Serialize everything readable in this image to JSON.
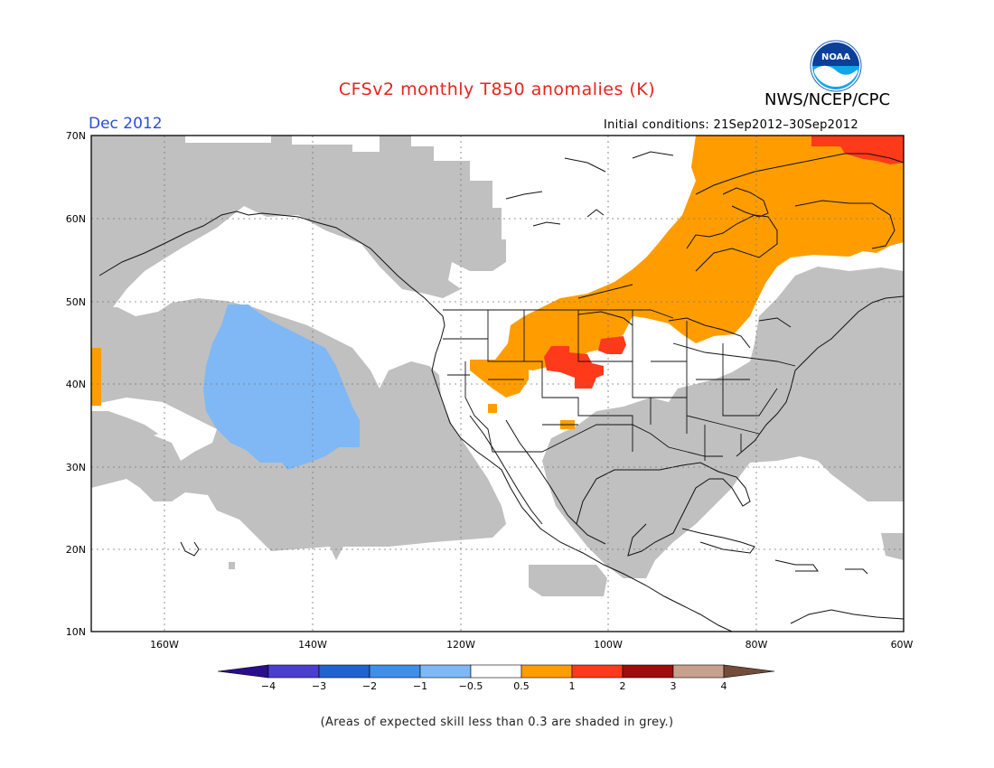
{
  "title": "CFSv2 monthly T850 anomalies (K)",
  "organization": "NWS/NCEP/CPC",
  "logo_text": "NOAA",
  "forecast_month": "Dec 2012",
  "initial_conditions": "Initial conditions: 21Sep2012–30Sep2012",
  "footnote": "(Areas of expected skill less than 0.3 are shaded in grey.)",
  "map": {
    "lat_labels": [
      "70N",
      "60N",
      "50N",
      "40N",
      "30N",
      "20N",
      "10N"
    ],
    "lon_labels": [
      "160W",
      "140W",
      "120W",
      "100W",
      "80W",
      "60W"
    ],
    "lat_range": [
      10,
      70
    ],
    "lon_range": [
      -170,
      -60
    ],
    "grid": true,
    "features": [
      {
        "name": "low-skill-region",
        "color": "#c0c0c0"
      },
      {
        "name": "cold-anomaly-pacific",
        "value_range": "-1 to -0.5",
        "color": "#7fb8f5"
      },
      {
        "name": "warm-anomaly-canada-north-central-us",
        "value_range": "0.5 to 1",
        "color": "#ff9d00"
      },
      {
        "name": "warm-anomaly-plains-arctic",
        "value_range": "1 to 2",
        "color": "#ff3a1a"
      }
    ]
  },
  "colorbar": {
    "ticks": [
      "−4",
      "−3",
      "−2",
      "−1",
      "−0.5",
      "0.5",
      "1",
      "2",
      "3",
      "4"
    ],
    "colors": [
      "#2a0e8c",
      "#4a3fd0",
      "#1f62d4",
      "#3d8fea",
      "#7fb8f5",
      "#ffffff",
      "#ff9d00",
      "#ff3a1a",
      "#a10b0b",
      "#c8a08e",
      "#734c3a"
    ]
  }
}
